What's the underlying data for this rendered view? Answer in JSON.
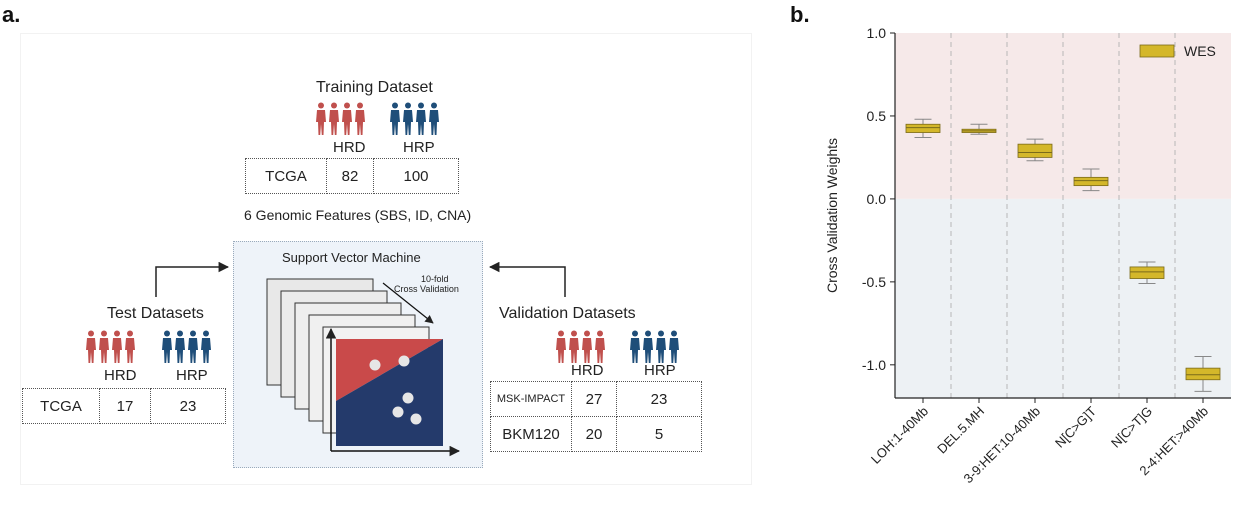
{
  "panel_a": {
    "label": "a.",
    "training": {
      "title": "Training Dataset",
      "hrd": "HRD",
      "hrp": "HRP",
      "row": {
        "name": "TCGA",
        "hrd": "82",
        "hrp": "100"
      }
    },
    "features": "6 Genomic Features (SBS, ID, CNA)",
    "svm": {
      "title": "Support Vector Machine",
      "cv_line1": "10-fold",
      "cv_line2": "Cross Validation"
    },
    "test": {
      "title": "Test Datasets",
      "hrd": "HRD",
      "hrp": "HRP",
      "row": {
        "name": "TCGA",
        "hrd": "17",
        "hrp": "23"
      }
    },
    "validation": {
      "title": "Validation Datasets",
      "hrd": "HRD",
      "hrp": "HRP",
      "rows": [
        {
          "name": "MSK-IMPACT",
          "hrd": "27",
          "hrp": "23"
        },
        {
          "name": "BKM120",
          "hrd": "20",
          "hrp": "5"
        }
      ]
    },
    "colors": {
      "hrd": "#c0504d",
      "hrp": "#1f4e79",
      "svm_red": "#c94a4a",
      "svm_blue": "#243a6b"
    }
  },
  "panel_b": {
    "label": "b."
  },
  "chart_data": {
    "type": "box",
    "ylabel": "Cross Validation Weights",
    "xlabel": "",
    "ylim": [
      -1.2,
      1.0
    ],
    "yticks": [
      "1.0",
      "0.5",
      "0.0",
      "-0.5",
      "-1.0"
    ],
    "categories": [
      "LOH:1-40Mb",
      "DEL.5.MH",
      "3-9:HET:10-40Mb",
      "N[C>G]T",
      "N[C>T]G",
      "2-4:HET:>40Mb"
    ],
    "series": [
      {
        "name": "WES",
        "color": "#d4b72a",
        "boxes": [
          {
            "whisker_low": 0.37,
            "q1": 0.4,
            "median": 0.43,
            "q3": 0.45,
            "whisker_high": 0.48
          },
          {
            "whisker_low": 0.39,
            "q1": 0.4,
            "median": 0.41,
            "q3": 0.42,
            "whisker_high": 0.45
          },
          {
            "whisker_low": 0.23,
            "q1": 0.25,
            "median": 0.28,
            "q3": 0.33,
            "whisker_high": 0.36
          },
          {
            "whisker_low": 0.05,
            "q1": 0.08,
            "median": 0.11,
            "q3": 0.13,
            "whisker_high": 0.18
          },
          {
            "whisker_low": -0.51,
            "q1": -0.48,
            "median": -0.44,
            "q3": -0.41,
            "whisker_high": -0.38
          },
          {
            "whisker_low": -1.16,
            "q1": -1.09,
            "median": -1.06,
            "q3": -1.02,
            "whisker_high": -0.95
          }
        ]
      }
    ],
    "background": {
      "positive": "#f6e9e9",
      "negative": "#edf1f4"
    },
    "grid": "vertical-dashed",
    "legend": "top-right"
  }
}
